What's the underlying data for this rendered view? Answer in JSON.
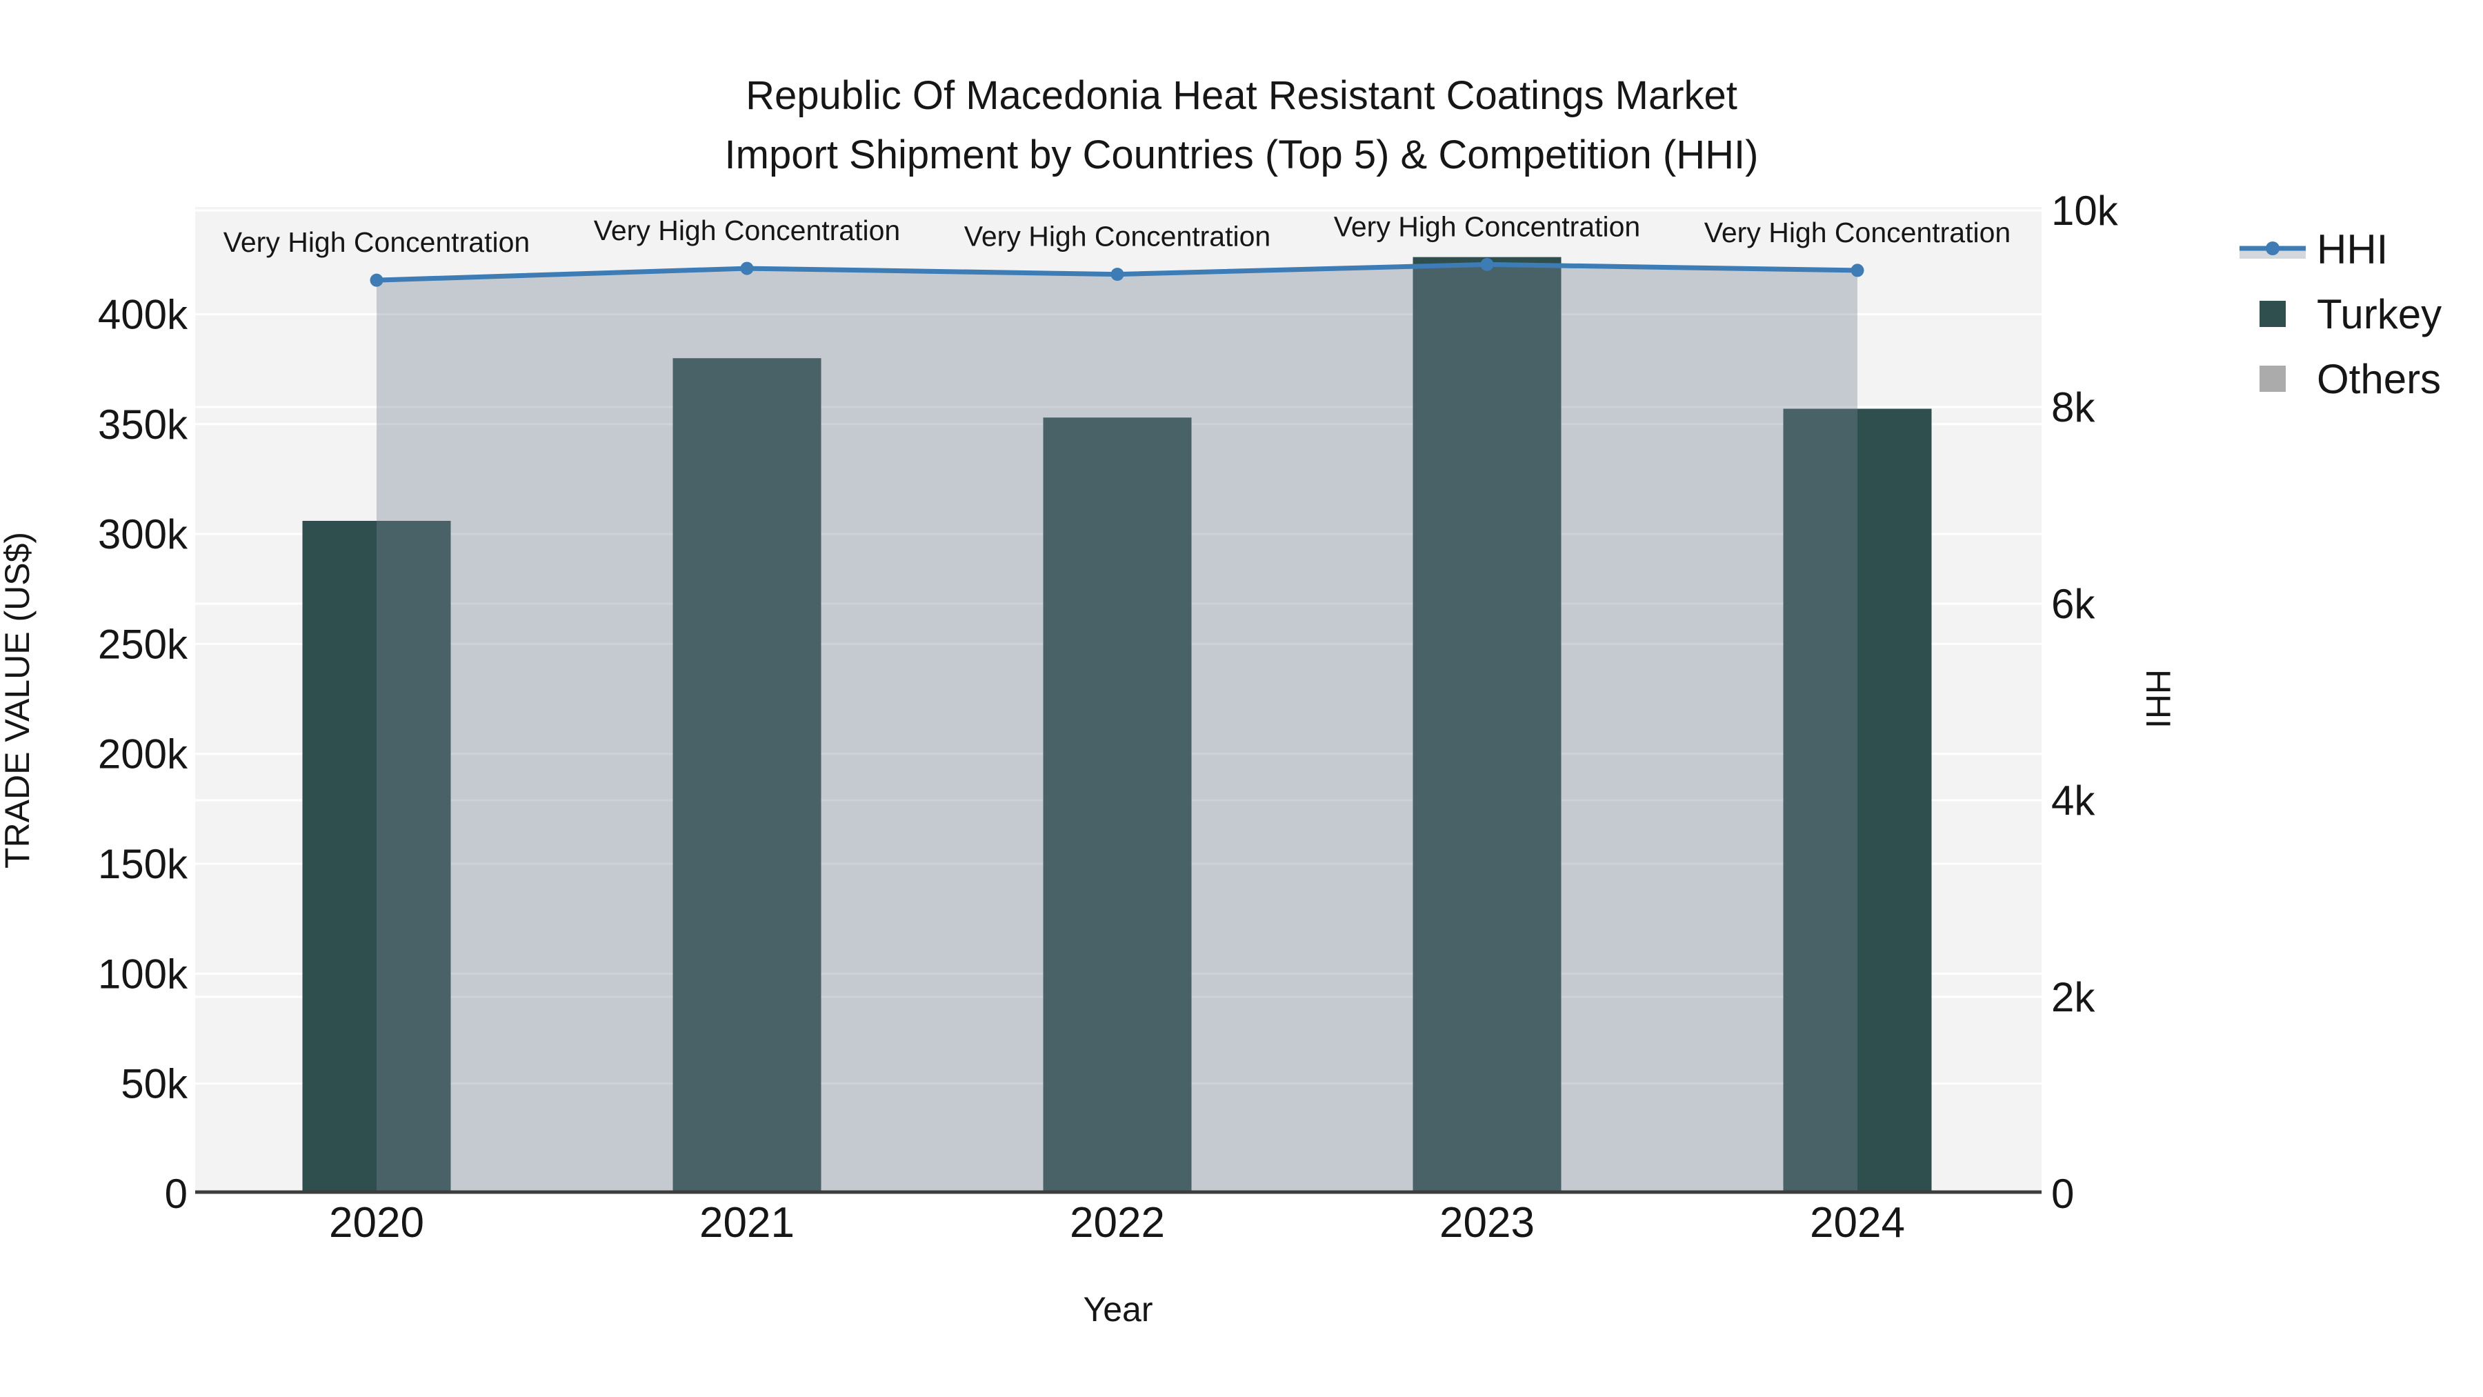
{
  "figure": {
    "title_line1": "Republic Of Macedonia Heat Resistant Coatings Market",
    "title_line2": "Import Shipment by Countries (Top 5) & Competition (HHI)"
  },
  "legend": {
    "items": [
      {
        "id": "hhi",
        "label": "HHI",
        "marker": "line-with-area",
        "line_color": "#3d7cb5",
        "area_color": "#d4d7dc"
      },
      {
        "id": "turkey",
        "label": "Turkey",
        "marker": "square",
        "color": "#2F4F4F"
      },
      {
        "id": "others",
        "label": "Others",
        "marker": "square",
        "color": "#ababab"
      }
    ]
  },
  "chart_data": {
    "type": "bar",
    "title": "Republic Of Macedonia Heat Resistant Coatings Market Import Shipment by Countries (Top 5) & Competition (HHI)",
    "categories": [
      2020,
      2021,
      2022,
      2023,
      2024
    ],
    "series": [
      {
        "name": "Turkey",
        "type": "bar",
        "yaxis": "left",
        "color": "#2F4F4F",
        "values": [
          306000,
          380000,
          353000,
          426000,
          357000
        ]
      },
      {
        "name": "Others",
        "type": "bar",
        "yaxis": "left",
        "color": "#ababab",
        "values": [
          0,
          0,
          0,
          0,
          0
        ]
      },
      {
        "name": "HHI",
        "type": "line",
        "yaxis": "right",
        "color": "#3d7cb5",
        "area_fill": "rgba(120,132,150,0.37)",
        "marker": "circle",
        "values": [
          9290,
          9410,
          9350,
          9450,
          9390
        ]
      }
    ],
    "annotations": [
      {
        "x": 2020,
        "text": "Very High Concentration"
      },
      {
        "x": 2021,
        "text": "Very High Concentration"
      },
      {
        "x": 2022,
        "text": "Very High Concentration"
      },
      {
        "x": 2023,
        "text": "Very High Concentration"
      },
      {
        "x": 2024,
        "text": "Very High Concentration"
      }
    ],
    "x_axis": {
      "title": "Year",
      "tick_labels": [
        "2020",
        "2021",
        "2022",
        "2023",
        "2024"
      ]
    },
    "y_left": {
      "title": "TRADE VALUE (US$)",
      "tick_labels": [
        "0",
        "50k",
        "100k",
        "150k",
        "200k",
        "250k",
        "300k",
        "350k",
        "400k"
      ],
      "tick_values": [
        0,
        50000,
        100000,
        150000,
        200000,
        250000,
        300000,
        350000,
        400000
      ],
      "range": [
        0,
        448800
      ]
    },
    "y_right": {
      "title": "HHI",
      "tick_labels": [
        "0",
        "2k",
        "4k",
        "6k",
        "8k",
        "10k"
      ],
      "tick_values": [
        0,
        2000,
        4000,
        6000,
        8000,
        10000
      ],
      "range": [
        0,
        10035
      ]
    },
    "grid": true,
    "legend_position": "top-right",
    "plot_bg": "#f2f3f2",
    "paper_bg": "#ffffff",
    "grid_color": "#ffffff",
    "axis_line_color": "#3c3c3c"
  }
}
